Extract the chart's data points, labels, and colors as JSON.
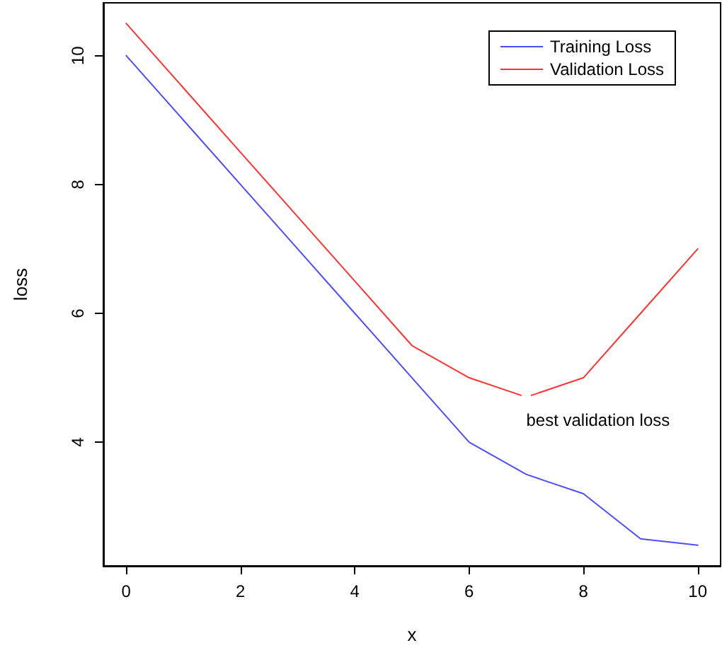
{
  "chart_data": {
    "type": "line",
    "xlabel": "x",
    "ylabel": "loss",
    "x": [
      0,
      1,
      2,
      3,
      4,
      5,
      6,
      7,
      8,
      9,
      10
    ],
    "series": [
      {
        "name": "Training Loss",
        "color": "#4d4dff",
        "values": [
          10,
          9,
          8,
          7,
          6,
          5,
          4,
          3.5,
          3.2,
          2.5,
          2.4
        ]
      },
      {
        "name": "Validation Loss",
        "color": "#ff3333",
        "values": [
          10.5,
          9.5,
          8.5,
          7.5,
          6.5,
          5.5,
          5,
          4.7,
          5,
          6,
          7
        ]
      }
    ],
    "annotations": [
      {
        "text": "best validation loss",
        "x": 7,
        "y": 4.7
      }
    ],
    "xlim": [
      -0.4,
      10.4
    ],
    "xticks": [
      0,
      2,
      4,
      6,
      8,
      10
    ],
    "ylim": [
      2.08,
      10.82
    ],
    "yticks": [
      4,
      6,
      8,
      10
    ],
    "grid": false,
    "legend": "top right",
    "marker": "none",
    "line_style": "solid"
  }
}
